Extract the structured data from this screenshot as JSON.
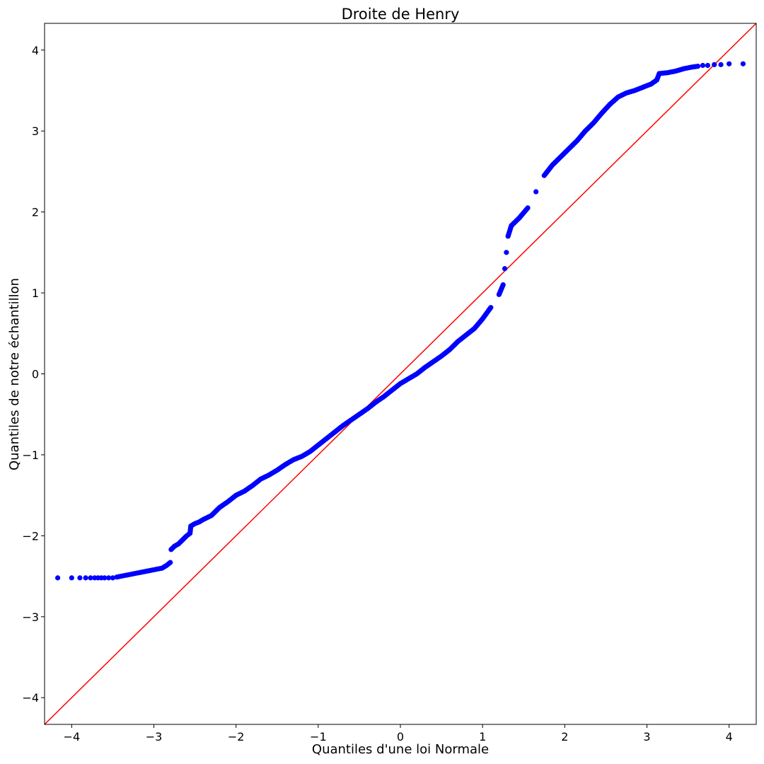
{
  "chart_data": {
    "type": "scatter",
    "title": "Droite de Henry",
    "xlabel": "Quantiles d'une loi Normale",
    "ylabel": "Quantiles de notre échantillon",
    "xlim": [
      -4.33,
      4.33
    ],
    "ylim": [
      -4.33,
      4.33
    ],
    "grid": false,
    "legend": "none",
    "x_ticks": [
      -4,
      -3,
      -2,
      -1,
      0,
      1,
      2,
      3,
      4
    ],
    "y_ticks": [
      -4,
      -3,
      -2,
      -1,
      0,
      1,
      2,
      3,
      4
    ],
    "x_tick_labels": [
      "−4",
      "−3",
      "−2",
      "−1",
      "0",
      "1",
      "2",
      "3",
      "4"
    ],
    "y_tick_labels": [
      "−4",
      "−3",
      "−2",
      "−1",
      "0",
      "1",
      "2",
      "3",
      "4"
    ],
    "reference_line": {
      "x": [
        -4.33,
        4.33
      ],
      "y": [
        -4.33,
        4.33
      ],
      "color": "#ff0000"
    },
    "series": [
      {
        "color": "#0000ff",
        "points": [
          [
            -4.17,
            -2.52
          ],
          [
            -4.0,
            -2.52
          ],
          [
            -3.9,
            -2.52
          ],
          [
            -3.83,
            -2.52
          ],
          [
            -3.77,
            -2.52
          ],
          [
            -3.72,
            -2.52
          ],
          [
            -3.68,
            -2.52
          ],
          [
            -3.64,
            -2.52
          ],
          [
            -3.6,
            -2.52
          ],
          [
            -3.55,
            -2.52
          ],
          [
            -3.5,
            -2.52
          ],
          [
            -3.45,
            -2.51
          ],
          [
            -3.4,
            -2.5
          ],
          [
            -3.35,
            -2.49
          ],
          [
            -3.3,
            -2.48
          ],
          [
            -3.25,
            -2.47
          ],
          [
            -3.2,
            -2.46
          ],
          [
            -3.1,
            -2.44
          ],
          [
            -3.0,
            -2.42
          ],
          [
            -2.9,
            -2.4
          ],
          [
            -2.85,
            -2.37
          ],
          [
            -2.8,
            -2.33
          ],
          [
            -2.79,
            -2.17
          ],
          [
            -2.75,
            -2.13
          ],
          [
            -2.7,
            -2.1
          ],
          [
            -2.65,
            -2.05
          ],
          [
            -2.6,
            -2.0
          ],
          [
            -2.56,
            -1.97
          ],
          [
            -2.55,
            -1.88
          ],
          [
            -2.5,
            -1.85
          ],
          [
            -2.45,
            -1.83
          ],
          [
            -2.4,
            -1.8
          ],
          [
            -2.3,
            -1.75
          ],
          [
            -2.2,
            -1.65
          ],
          [
            -2.1,
            -1.58
          ],
          [
            -2.0,
            -1.5
          ],
          [
            -1.9,
            -1.45
          ],
          [
            -1.8,
            -1.38
          ],
          [
            -1.7,
            -1.3
          ],
          [
            -1.6,
            -1.25
          ],
          [
            -1.5,
            -1.19
          ],
          [
            -1.4,
            -1.12
          ],
          [
            -1.3,
            -1.06
          ],
          [
            -1.2,
            -1.02
          ],
          [
            -1.1,
            -0.96
          ],
          [
            -1.0,
            -0.88
          ],
          [
            -0.9,
            -0.8
          ],
          [
            -0.8,
            -0.72
          ],
          [
            -0.7,
            -0.64
          ],
          [
            -0.6,
            -0.57
          ],
          [
            -0.5,
            -0.5
          ],
          [
            -0.4,
            -0.43
          ],
          [
            -0.3,
            -0.35
          ],
          [
            -0.2,
            -0.28
          ],
          [
            -0.1,
            -0.2
          ],
          [
            0.0,
            -0.12
          ],
          [
            0.1,
            -0.06
          ],
          [
            0.2,
            0.0
          ],
          [
            0.3,
            0.08
          ],
          [
            0.4,
            0.15
          ],
          [
            0.5,
            0.22
          ],
          [
            0.6,
            0.3
          ],
          [
            0.7,
            0.4
          ],
          [
            0.8,
            0.48
          ],
          [
            0.9,
            0.56
          ],
          [
            1.0,
            0.68
          ],
          [
            1.1,
            0.82
          ],
          [
            1.2,
            0.98
          ],
          [
            1.25,
            1.1
          ],
          [
            1.27,
            1.3
          ],
          [
            1.29,
            1.5
          ],
          [
            1.31,
            1.7
          ],
          [
            1.35,
            1.83
          ],
          [
            1.45,
            1.93
          ],
          [
            1.55,
            2.05
          ],
          [
            1.65,
            2.25
          ],
          [
            1.75,
            2.45
          ],
          [
            1.85,
            2.58
          ],
          [
            1.95,
            2.68
          ],
          [
            2.05,
            2.78
          ],
          [
            2.15,
            2.88
          ],
          [
            2.25,
            3.0
          ],
          [
            2.35,
            3.1
          ],
          [
            2.45,
            3.22
          ],
          [
            2.55,
            3.33
          ],
          [
            2.65,
            3.42
          ],
          [
            2.75,
            3.47
          ],
          [
            2.85,
            3.5
          ],
          [
            2.95,
            3.54
          ],
          [
            3.05,
            3.58
          ],
          [
            3.12,
            3.63
          ],
          [
            3.15,
            3.71
          ],
          [
            3.25,
            3.72
          ],
          [
            3.35,
            3.74
          ],
          [
            3.45,
            3.77
          ],
          [
            3.55,
            3.79
          ],
          [
            3.62,
            3.8
          ],
          [
            3.68,
            3.81
          ],
          [
            3.74,
            3.81
          ],
          [
            3.82,
            3.82
          ],
          [
            3.9,
            3.82
          ],
          [
            4.0,
            3.83
          ],
          [
            4.17,
            3.83
          ]
        ]
      }
    ]
  }
}
